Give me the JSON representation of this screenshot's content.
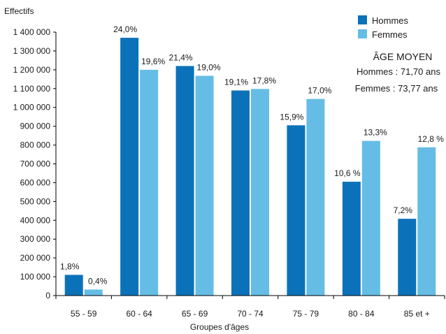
{
  "chart_data": {
    "type": "bar",
    "ylabel": "Effectifs",
    "xlabel": "Groupes d'âges",
    "ylim": [
      0,
      1400000
    ],
    "ytick_values": [
      0,
      100000,
      200000,
      300000,
      400000,
      500000,
      600000,
      700000,
      800000,
      900000,
      1000000,
      1100000,
      1200000,
      1300000,
      1400000
    ],
    "ytick_labels": [
      "0",
      "100 000",
      "200 000",
      "300 000",
      "400 000",
      "500 000",
      "600 000",
      "700 000",
      "800 000",
      "900 000",
      "1 000 000",
      "1 100 000",
      "1 200 000",
      "1 300 000",
      "1 400 000"
    ],
    "categories": [
      "55 - 59",
      "60 - 64",
      "65 - 69",
      "70 - 74",
      "75 - 79",
      "80 - 84",
      "85 et +"
    ],
    "series": [
      {
        "name": "Hommes",
        "color": "#0b72b9",
        "values": [
          110000,
          1370000,
          1220000,
          1090000,
          905000,
          605000,
          408000
        ],
        "labels": [
          "1,8%",
          "24,0%",
          "21,4%",
          "19,1%",
          "15,9%",
          "10,6 %",
          "7,2%"
        ]
      },
      {
        "name": "Femmes",
        "color": "#65bde6",
        "values": [
          32000,
          1200000,
          1168000,
          1098000,
          1045000,
          822000,
          788000
        ],
        "labels": [
          "0,4%",
          "19,6%",
          "19,0%",
          "17,8%",
          "17,0%",
          "13,3%",
          "12,8 %"
        ]
      }
    ],
    "legend_position": "top-right",
    "grid": false,
    "annotation": {
      "title": "ÂGE MOYEN",
      "lines": [
        "Hommes : 71,70 ans",
        "Femmes : 73,77 ans"
      ]
    }
  }
}
